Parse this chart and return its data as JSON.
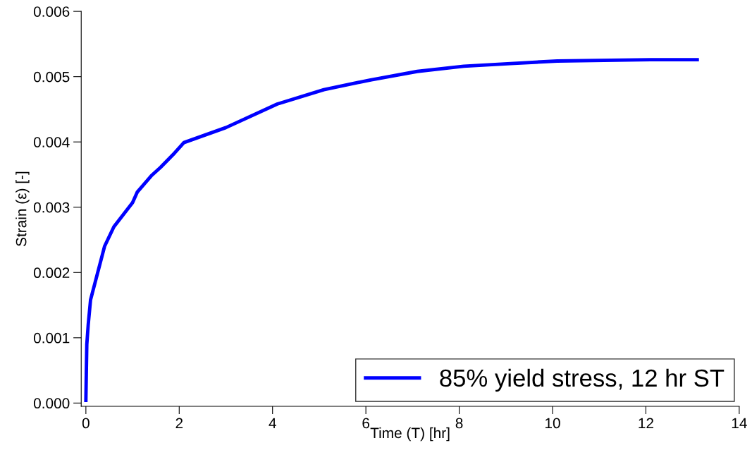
{
  "chart_data": {
    "type": "line",
    "xlabel": "Time (T) [hr]",
    "ylabel": "Strain (ε) [-]",
    "x": [
      0,
      0.01,
      0.02,
      0.05,
      0.1,
      0.4,
      0.6,
      1.0,
      1.1,
      1.4,
      1.6,
      1.9,
      2.1,
      3.0,
      4.1,
      5.1,
      6.1,
      7.1,
      8.1,
      9.1,
      10.1,
      12.1,
      13.1
    ],
    "series": [
      {
        "name": "85% yield stress, 12 hr ST",
        "color": "#0000ff",
        "values": [
          4e-05,
          0.0005,
          0.0009,
          0.0012,
          0.00158,
          0.0024,
          0.0027,
          0.00307,
          0.00323,
          0.00348,
          0.00361,
          0.00383,
          0.00399,
          0.00422,
          0.00458,
          0.0048,
          0.00495,
          0.00508,
          0.00516,
          0.0052,
          0.00524,
          0.00526,
          0.00526
        ]
      }
    ],
    "xlim": [
      -0.1,
      14
    ],
    "xticks": [
      0,
      2,
      4,
      6,
      8,
      10,
      12,
      14
    ],
    "ylim": [
      -5e-05,
      0.006
    ],
    "yticks": [
      {
        "value": 0,
        "label": "0.000"
      },
      {
        "value": 0.001,
        "label": "0.001"
      },
      {
        "value": 0.002,
        "label": "0.002"
      },
      {
        "value": 0.003,
        "label": "0.003"
      },
      {
        "value": 0.004,
        "label": "0.004"
      },
      {
        "value": 0.005,
        "label": "0.005"
      },
      {
        "value": 0.006,
        "label": "0.006"
      }
    ],
    "grid": false,
    "legend": "bottom right",
    "line_style": "solid",
    "marker": "none"
  }
}
